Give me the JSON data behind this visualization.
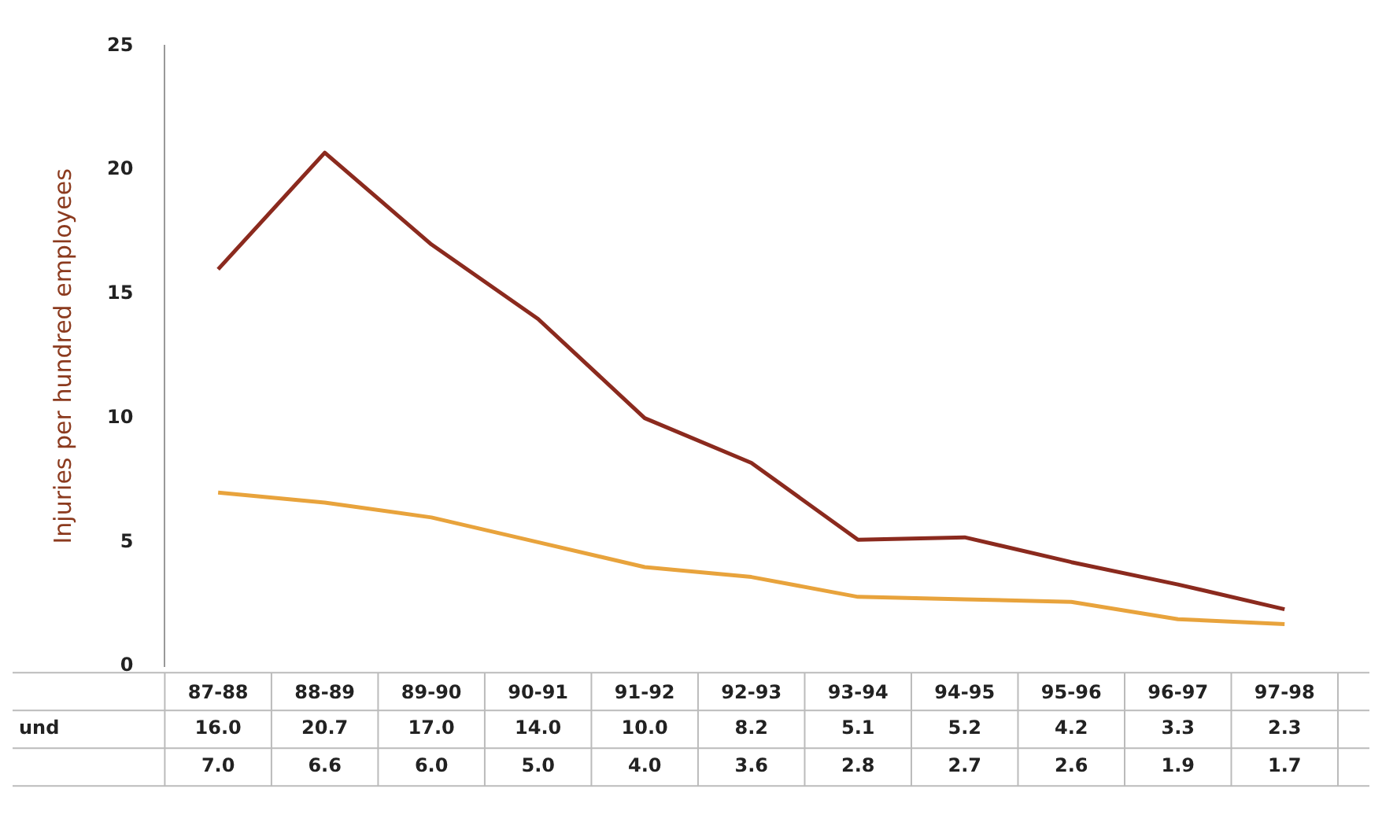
{
  "chart_data": {
    "type": "line",
    "ylabel": "Injuries per hundred employees",
    "categories": [
      "87-88",
      "88-89",
      "89-90",
      "90-91",
      "91-92",
      "92-93",
      "93-94",
      "94-95",
      "95-96",
      "96-97",
      "97-98"
    ],
    "series": [
      {
        "name": "und",
        "color": "#8b2a1e",
        "values": [
          16.0,
          20.7,
          17.0,
          14.0,
          10.0,
          8.2,
          5.1,
          5.2,
          4.2,
          3.3,
          2.3
        ],
        "value_labels": [
          "16.0",
          "20.7",
          "17.0",
          "14.0",
          "10.0",
          "8.2",
          "5.1",
          "5.2",
          "4.2",
          "3.3",
          "2.3"
        ]
      },
      {
        "color": "#e8a33c",
        "values": [
          7.0,
          6.6,
          6.0,
          5.0,
          4.0,
          3.6,
          2.8,
          2.7,
          2.6,
          1.9,
          1.7
        ],
        "value_labels": [
          "7.0",
          "6.6",
          "6.0",
          "5.0",
          "4.0",
          "3.6",
          "2.8",
          "2.7",
          "2.6",
          "1.9",
          "1.7"
        ]
      }
    ],
    "ylim": [
      0,
      25
    ],
    "yticks": [
      0,
      5,
      10,
      15,
      20,
      25
    ],
    "grid": false,
    "legend": false,
    "marker": "none",
    "line_style": "solid"
  }
}
